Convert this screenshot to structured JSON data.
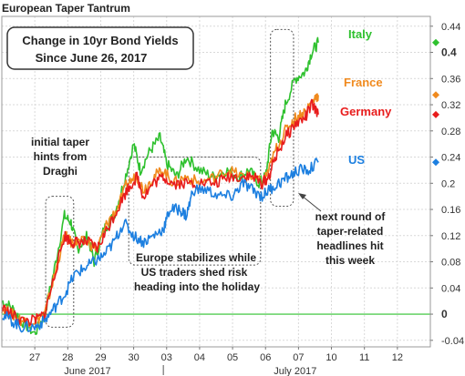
{
  "chart_data": {
    "type": "line",
    "title": "European Taper Tantrum",
    "subtitle_lines": [
      "Change in 10yr Bond Yields",
      "Since June 26, 2017"
    ],
    "y_ticks": [
      "-0.04",
      "0",
      "0.04",
      "0.08",
      "0.12",
      "0.16",
      "0.2",
      "0.24",
      "0.28",
      "0.32",
      "0.36",
      "0.4",
      "0.44"
    ],
    "ylim": [
      -0.05,
      0.455
    ],
    "xlim": [
      0,
      13
    ],
    "x_ticks": [
      {
        "x": 1,
        "label": "27"
      },
      {
        "x": 2,
        "label": "28"
      },
      {
        "x": 3,
        "label": "29"
      },
      {
        "x": 4,
        "label": "30"
      },
      {
        "x": 5,
        "label": "03"
      },
      {
        "x": 6,
        "label": "04"
      },
      {
        "x": 7,
        "label": "05"
      },
      {
        "x": 8,
        "label": "06"
      },
      {
        "x": 9,
        "label": "07"
      },
      {
        "x": 10,
        "label": "10"
      },
      {
        "x": 11,
        "label": "11"
      },
      {
        "x": 12,
        "label": "12"
      }
    ],
    "month_labels": [
      {
        "x": 2.6,
        "label": "June 2017"
      },
      {
        "x": 8.9,
        "label": "July 2017"
      }
    ],
    "series": [
      {
        "name": "Italy",
        "color": "#2fc12f",
        "end_value": 0.415,
        "points": [
          [
            0,
            0.02
          ],
          [
            0.3,
            0.01
          ],
          [
            0.6,
            -0.01
          ],
          [
            1,
            -0.03
          ],
          [
            1.3,
            0.0
          ],
          [
            1.6,
            0.07
          ],
          [
            1.9,
            0.15
          ],
          [
            2.1,
            0.14
          ],
          [
            2.3,
            0.1
          ],
          [
            2.6,
            0.12
          ],
          [
            2.8,
            0.08
          ],
          [
            3.1,
            0.13
          ],
          [
            3.4,
            0.15
          ],
          [
            3.7,
            0.2
          ],
          [
            4.0,
            0.26
          ],
          [
            4.2,
            0.22
          ],
          [
            4.5,
            0.25
          ],
          [
            4.8,
            0.27
          ],
          [
            5.0,
            0.23
          ],
          [
            5.3,
            0.21
          ],
          [
            5.6,
            0.24
          ],
          [
            6.0,
            0.22
          ],
          [
            6.4,
            0.21
          ],
          [
            6.8,
            0.22
          ],
          [
            7.2,
            0.21
          ],
          [
            7.5,
            0.22
          ],
          [
            7.8,
            0.2
          ],
          [
            8.0,
            0.21
          ],
          [
            8.2,
            0.28
          ],
          [
            8.4,
            0.27
          ],
          [
            8.6,
            0.32
          ],
          [
            8.9,
            0.36
          ],
          [
            9.2,
            0.37
          ],
          [
            9.4,
            0.4
          ],
          [
            9.6,
            0.415
          ]
        ]
      },
      {
        "name": "France",
        "color": "#f08a1e",
        "end_value": 0.335,
        "points": [
          [
            0,
            0.01
          ],
          [
            0.3,
            0.0
          ],
          [
            0.6,
            -0.01
          ],
          [
            1,
            -0.01
          ],
          [
            1.3,
            0.0
          ],
          [
            1.6,
            0.06
          ],
          [
            1.9,
            0.12
          ],
          [
            2.1,
            0.11
          ],
          [
            2.3,
            0.11
          ],
          [
            2.6,
            0.11
          ],
          [
            2.9,
            0.1
          ],
          [
            3.2,
            0.14
          ],
          [
            3.5,
            0.16
          ],
          [
            3.8,
            0.2
          ],
          [
            4.1,
            0.21
          ],
          [
            4.3,
            0.19
          ],
          [
            4.6,
            0.21
          ],
          [
            4.9,
            0.22
          ],
          [
            5.2,
            0.2
          ],
          [
            5.6,
            0.21
          ],
          [
            6.0,
            0.2
          ],
          [
            6.5,
            0.21
          ],
          [
            6.9,
            0.22
          ],
          [
            7.3,
            0.21
          ],
          [
            7.6,
            0.21
          ],
          [
            7.9,
            0.2
          ],
          [
            8.1,
            0.22
          ],
          [
            8.3,
            0.25
          ],
          [
            8.6,
            0.28
          ],
          [
            8.9,
            0.3
          ],
          [
            9.2,
            0.31
          ],
          [
            9.5,
            0.33
          ],
          [
            9.6,
            0.335
          ]
        ]
      },
      {
        "name": "Germany",
        "color": "#e81c1c",
        "end_value": 0.305,
        "points": [
          [
            0,
            0.01
          ],
          [
            0.3,
            0.0
          ],
          [
            0.6,
            -0.01
          ],
          [
            1,
            -0.01
          ],
          [
            1.3,
            0.0
          ],
          [
            1.6,
            0.06
          ],
          [
            1.9,
            0.12
          ],
          [
            2.1,
            0.11
          ],
          [
            2.3,
            0.11
          ],
          [
            2.6,
            0.11
          ],
          [
            2.9,
            0.1
          ],
          [
            3.2,
            0.13
          ],
          [
            3.5,
            0.16
          ],
          [
            3.8,
            0.19
          ],
          [
            4.1,
            0.21
          ],
          [
            4.3,
            0.18
          ],
          [
            4.6,
            0.2
          ],
          [
            4.9,
            0.21
          ],
          [
            5.2,
            0.2
          ],
          [
            5.6,
            0.2
          ],
          [
            6.0,
            0.2
          ],
          [
            6.5,
            0.2
          ],
          [
            6.9,
            0.21
          ],
          [
            7.3,
            0.21
          ],
          [
            7.6,
            0.21
          ],
          [
            7.9,
            0.2
          ],
          [
            8.1,
            0.21
          ],
          [
            8.3,
            0.24
          ],
          [
            8.6,
            0.27
          ],
          [
            8.9,
            0.29
          ],
          [
            9.2,
            0.3
          ],
          [
            9.4,
            0.32
          ],
          [
            9.6,
            0.305
          ]
        ]
      },
      {
        "name": "US",
        "color": "#1c7fe0",
        "end_value": 0.232,
        "points": [
          [
            0,
            0.0
          ],
          [
            0.3,
            -0.01
          ],
          [
            0.6,
            -0.02
          ],
          [
            1,
            -0.02
          ],
          [
            1.3,
            -0.01
          ],
          [
            1.6,
            0.01
          ],
          [
            1.9,
            0.03
          ],
          [
            2.2,
            0.06
          ],
          [
            2.5,
            0.07
          ],
          [
            2.8,
            0.08
          ],
          [
            3.1,
            0.09
          ],
          [
            3.4,
            0.11
          ],
          [
            3.7,
            0.14
          ],
          [
            4.0,
            0.12
          ],
          [
            4.3,
            0.11
          ],
          [
            4.6,
            0.12
          ],
          [
            4.9,
            0.13
          ],
          [
            5.1,
            0.16
          ],
          [
            5.4,
            0.16
          ],
          [
            5.6,
            0.15
          ],
          [
            5.8,
            0.19
          ],
          [
            6.2,
            0.19
          ],
          [
            6.6,
            0.18
          ],
          [
            7.0,
            0.18
          ],
          [
            7.3,
            0.2
          ],
          [
            7.6,
            0.19
          ],
          [
            7.9,
            0.18
          ],
          [
            8.1,
            0.19
          ],
          [
            8.4,
            0.2
          ],
          [
            8.7,
            0.21
          ],
          [
            9.0,
            0.22
          ],
          [
            9.3,
            0.22
          ],
          [
            9.6,
            0.232
          ]
        ]
      }
    ],
    "annotations": [
      {
        "lines": [
          "initial taper",
          "hints from",
          "Draghi"
        ]
      },
      {
        "lines": [
          "Europe stabilizes while",
          "US traders shed risk",
          "heading into the holiday"
        ]
      },
      {
        "lines": [
          "next round of",
          "taper-related",
          "headlines hit",
          "this week"
        ]
      }
    ]
  }
}
